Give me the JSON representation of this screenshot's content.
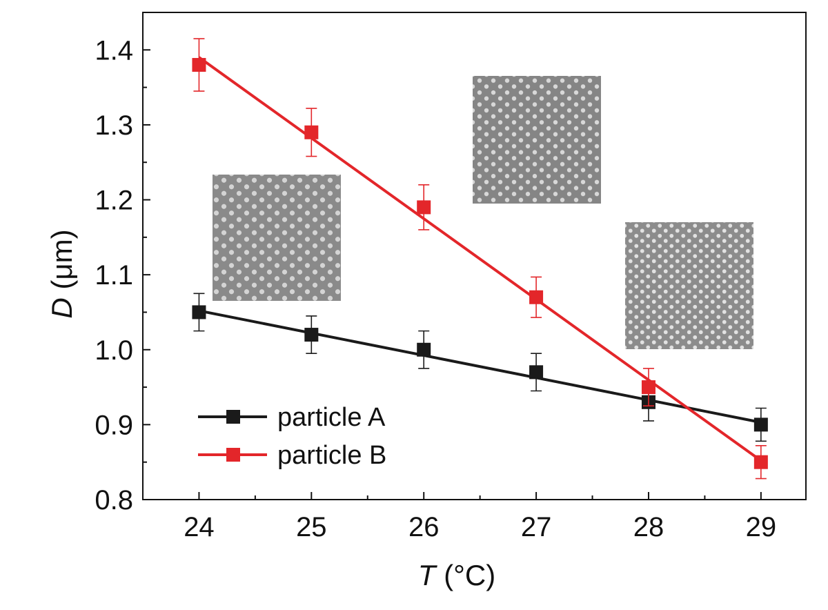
{
  "chart_data": {
    "type": "line",
    "xlabel": {
      "var": "T",
      "unit": " (°C)"
    },
    "ylabel": {
      "var": "D",
      "unit": " (μm)"
    },
    "x": [
      24,
      25,
      26,
      27,
      28,
      29
    ],
    "xlim": [
      23.5,
      29.4
    ],
    "ylim": [
      0.8,
      1.45
    ],
    "xticks": [
      "24",
      "25",
      "26",
      "27",
      "28",
      "29"
    ],
    "yticks": [
      "0.8",
      "0.9",
      "1.0",
      "1.1",
      "1.2",
      "1.3",
      "1.4"
    ],
    "grid": false,
    "legend_position": "bottom-left",
    "series": [
      {
        "name": "particle A",
        "color": "#1a1a1a",
        "values": [
          1.05,
          1.02,
          1.0,
          0.97,
          0.93,
          0.9
        ],
        "errors": [
          0.025,
          0.025,
          0.025,
          0.025,
          0.025,
          0.022
        ],
        "fit": [
          1.052,
          0.903
        ]
      },
      {
        "name": "particle B",
        "color": "#e3262a",
        "values": [
          1.38,
          1.29,
          1.19,
          1.07,
          0.95,
          0.85
        ],
        "errors": [
          0.035,
          0.032,
          0.03,
          0.027,
          0.025,
          0.022
        ],
        "fit": [
          1.39,
          0.852
        ]
      }
    ],
    "insets": [
      {
        "name": "inset-micrograph-left",
        "pattern": "hexagonal-lattice"
      },
      {
        "name": "inset-micrograph-top",
        "pattern": "hexagonal-lattice"
      },
      {
        "name": "inset-micrograph-right",
        "pattern": "hexagonal-lattice"
      }
    ]
  }
}
